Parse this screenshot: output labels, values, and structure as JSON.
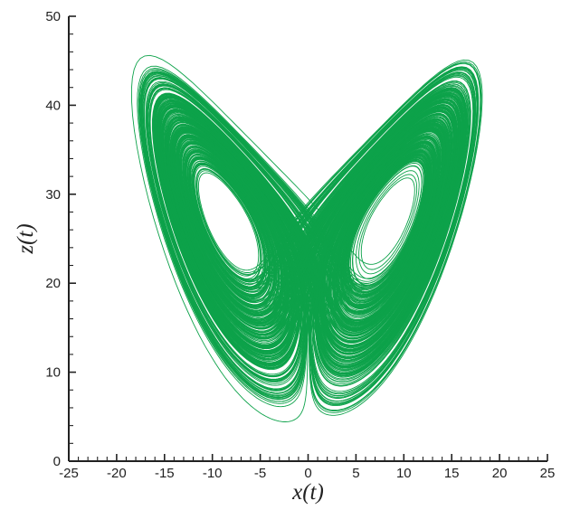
{
  "chart_data": {
    "type": "line",
    "title": "",
    "xlabel": "x(t)",
    "ylabel": "z(t)",
    "xlim": [
      -25,
      25
    ],
    "ylim": [
      0,
      50
    ],
    "x_ticks": [
      -25,
      -20,
      -15,
      -10,
      -5,
      0,
      5,
      10,
      15,
      20,
      25
    ],
    "y_ticks": [
      0,
      10,
      20,
      30,
      40,
      50
    ],
    "x_tick_labels": [
      "-25",
      "-20",
      "-15",
      "-10",
      "-5",
      "0",
      "5",
      "10",
      "15",
      "20",
      "25"
    ],
    "y_tick_labels": [
      "0",
      "10",
      "20",
      "30",
      "40",
      "50"
    ],
    "grid": false,
    "legend": "none",
    "series": [
      {
        "color": "#0da24a",
        "description_points": "Lorenz attractor trajectory (sigma=10, rho=28, beta=8/3) projected onto x–z plane",
        "extent": {
          "x": [
            -18.5,
            18.5
          ],
          "z": [
            3.2,
            46.5
          ]
        },
        "holes": [
          {
            "center_x": -8.5,
            "center_z": 27.0
          },
          {
            "center_x": 8.5,
            "center_z": 27.0
          }
        ]
      }
    ]
  }
}
